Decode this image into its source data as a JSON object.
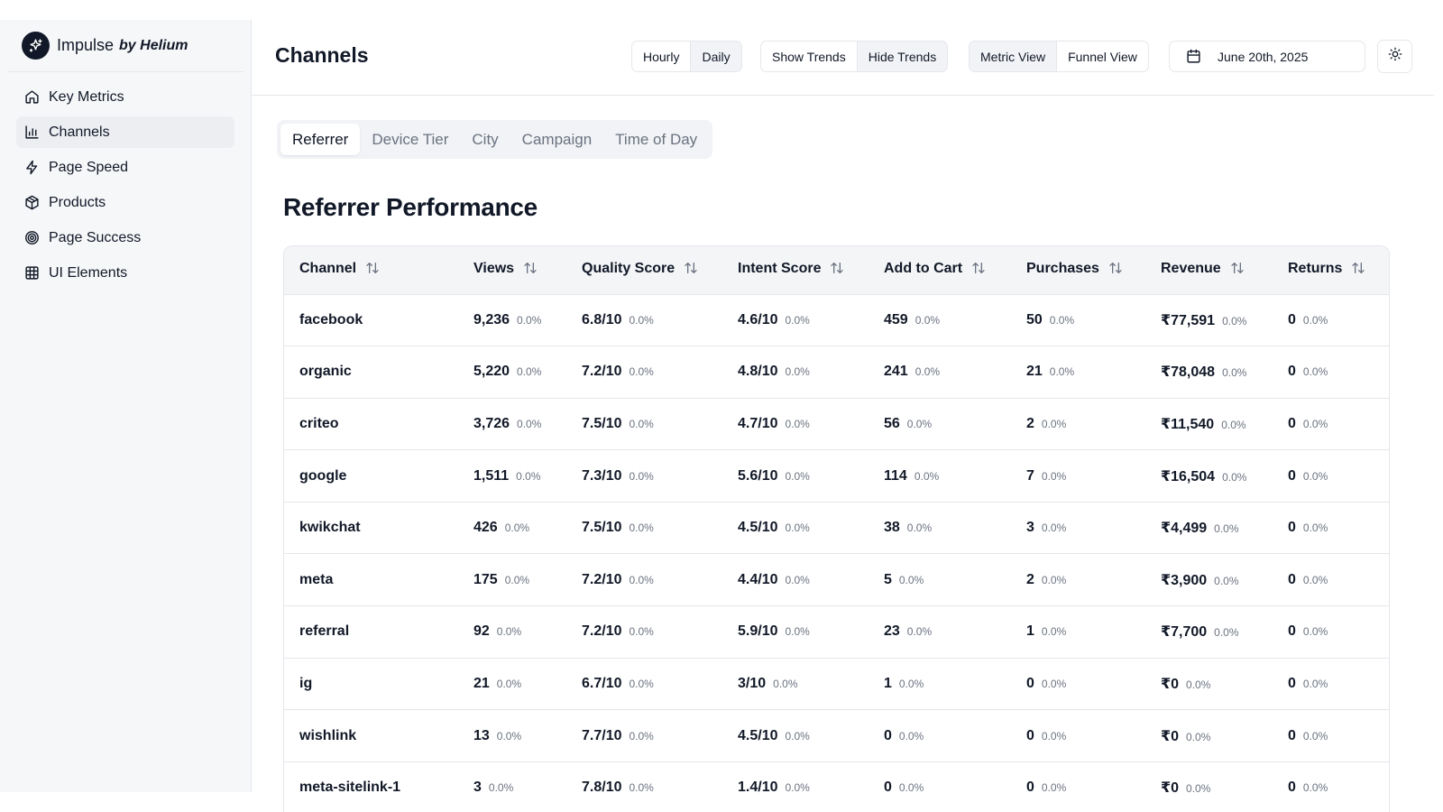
{
  "app": {
    "name": "Impulse",
    "by": "by Helium"
  },
  "sidebar": {
    "items": [
      {
        "label": "Key Metrics",
        "icon": "home-icon"
      },
      {
        "label": "Channels",
        "icon": "bar-chart-icon"
      },
      {
        "label": "Page Speed",
        "icon": "lightning-icon"
      },
      {
        "label": "Products",
        "icon": "package-icon"
      },
      {
        "label": "Page Success",
        "icon": "target-icon"
      },
      {
        "label": "UI Elements",
        "icon": "grid-icon"
      }
    ],
    "active": "Channels"
  },
  "header": {
    "title": "Channels",
    "granularity": {
      "options": [
        "Hourly",
        "Daily"
      ],
      "selected": "Daily"
    },
    "trends": {
      "options": [
        "Show Trends",
        "Hide Trends"
      ],
      "selected": "Hide Trends"
    },
    "view": {
      "options": [
        "Metric View",
        "Funnel View"
      ],
      "selected": "Metric View"
    },
    "date": "June 20th, 2025"
  },
  "tabs": {
    "items": [
      "Referrer",
      "Device Tier",
      "City",
      "Campaign",
      "Time of Day"
    ],
    "selected": "Referrer"
  },
  "section_title": "Referrer Performance",
  "table": {
    "columns": [
      "Channel",
      "Views",
      "Quality Score",
      "Intent Score",
      "Add to Cart",
      "Purchases",
      "Revenue",
      "Returns"
    ],
    "rows": [
      {
        "channel": "facebook",
        "views": "9,236",
        "quality": "6.8/10",
        "intent": "4.6/10",
        "atc": "459",
        "purchases": "50",
        "revenue": "₹77,591",
        "returns": "0"
      },
      {
        "channel": "organic",
        "views": "5,220",
        "quality": "7.2/10",
        "intent": "4.8/10",
        "atc": "241",
        "purchases": "21",
        "revenue": "₹78,048",
        "returns": "0"
      },
      {
        "channel": "criteo",
        "views": "3,726",
        "quality": "7.5/10",
        "intent": "4.7/10",
        "atc": "56",
        "purchases": "2",
        "revenue": "₹11,540",
        "returns": "0"
      },
      {
        "channel": "google",
        "views": "1,511",
        "quality": "7.3/10",
        "intent": "5.6/10",
        "atc": "114",
        "purchases": "7",
        "revenue": "₹16,504",
        "returns": "0"
      },
      {
        "channel": "kwikchat",
        "views": "426",
        "quality": "7.5/10",
        "intent": "4.5/10",
        "atc": "38",
        "purchases": "3",
        "revenue": "₹4,499",
        "returns": "0"
      },
      {
        "channel": "meta",
        "views": "175",
        "quality": "7.2/10",
        "intent": "4.4/10",
        "atc": "5",
        "purchases": "2",
        "revenue": "₹3,900",
        "returns": "0"
      },
      {
        "channel": "referral",
        "views": "92",
        "quality": "7.2/10",
        "intent": "5.9/10",
        "atc": "23",
        "purchases": "1",
        "revenue": "₹7,700",
        "returns": "0"
      },
      {
        "channel": "ig",
        "views": "21",
        "quality": "6.7/10",
        "intent": "3/10",
        "atc": "1",
        "purchases": "0",
        "revenue": "₹0",
        "returns": "0"
      },
      {
        "channel": "wishlink",
        "views": "13",
        "quality": "7.7/10",
        "intent": "4.5/10",
        "atc": "0",
        "purchases": "0",
        "revenue": "₹0",
        "returns": "0"
      },
      {
        "channel": "meta-sitelink-1",
        "views": "3",
        "quality": "7.8/10",
        "intent": "1.4/10",
        "atc": "0",
        "purchases": "0",
        "revenue": "₹0",
        "returns": "0"
      }
    ],
    "change_label": "0.0%"
  }
}
